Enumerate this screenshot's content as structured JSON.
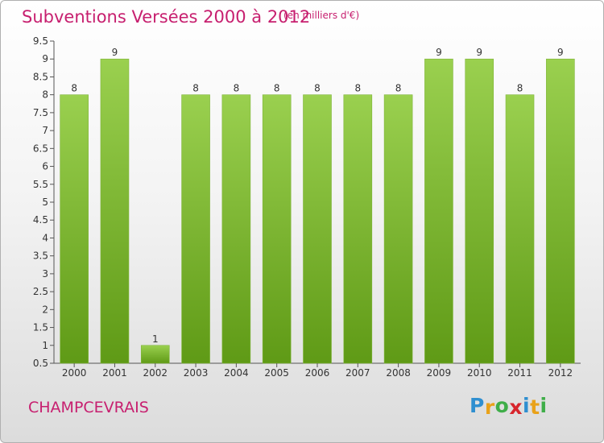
{
  "header": {
    "title": "Subventions Versées 2000 à 2012",
    "subtitle": "(en milliers d'€)"
  },
  "footer": {
    "commune": "CHAMPCEVRAIS",
    "logo_letters": [
      "P",
      "r",
      "o",
      "x",
      "i",
      "t",
      "i"
    ],
    "logo_colors": [
      "#2f8fd0",
      "#e9a21a",
      "#3fae49",
      "#d7262d",
      "#2f8fd0",
      "#e9a21a",
      "#3fae49"
    ]
  },
  "chart_data": {
    "type": "bar",
    "categories": [
      "2000",
      "2001",
      "2002",
      "2003",
      "2004",
      "2005",
      "2006",
      "2007",
      "2008",
      "2009",
      "2010",
      "2011",
      "2012"
    ],
    "values": [
      8,
      9,
      1,
      8,
      8,
      8,
      8,
      8,
      8,
      9,
      9,
      8,
      9
    ],
    "data_labels": [
      "8",
      "9",
      "1",
      "8",
      "8",
      "8",
      "8",
      "8",
      "8",
      "9",
      "9",
      "8",
      "9"
    ],
    "ylim": [
      0.5,
      9.5
    ],
    "yticks": [
      "0.5",
      "1",
      "1.5",
      "2",
      "2.5",
      "3",
      "3.5",
      "4",
      "4.5",
      "5",
      "5.5",
      "6",
      "6.5",
      "7",
      "7.5",
      "8",
      "8.5",
      "9",
      "9.5"
    ],
    "grid": false,
    "colors": {
      "bar_light": "#9ad04f",
      "bar_dark": "#5f9a16",
      "text": "#333333",
      "axis": "#555555"
    }
  }
}
